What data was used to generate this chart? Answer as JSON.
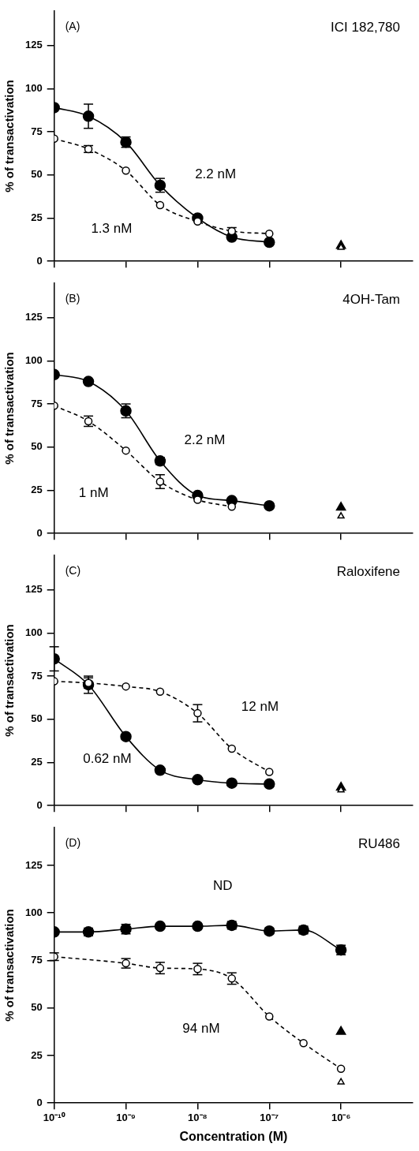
{
  "chart_data": [
    {
      "type": "line",
      "title": "ICI 182,780",
      "ylabel": "% of transactivation",
      "x": [
        1e-10,
        3e-10,
        1e-09,
        3e-09,
        1e-08,
        3e-08,
        1e-07,
        1e-06
      ],
      "xlim": [
        1e-10,
        1e-05
      ],
      "xticks": [
        {
          "value": 1e-10,
          "label": null
        },
        {
          "value": 1e-09,
          "label": null
        },
        {
          "value": 1e-08,
          "label": null
        },
        {
          "value": 1e-07,
          "label": null
        },
        {
          "value": 1e-06,
          "label": null
        }
      ],
      "ylim": [
        0,
        145
      ],
      "yticks": [
        0,
        25,
        50,
        75,
        100,
        125
      ],
      "log": "x",
      "tick_labels": "y",
      "legend": false,
      "grid": false,
      "series": [
        {
          "color": "#000000",
          "marker": "circle",
          "line_style": "solid",
          "values": [
            89,
            84,
            69,
            44,
            25,
            14,
            11,
            null
          ],
          "errors": [
            null,
            7,
            3,
            4,
            null,
            null,
            null,
            null
          ]
        },
        {
          "color": "#000000",
          "marker": "circle",
          "line_style": "dashed",
          "values": [
            71,
            65,
            52.5,
            32.5,
            23,
            17.5,
            16,
            null
          ],
          "errors": [
            null,
            2,
            null,
            null,
            null,
            2,
            null,
            null
          ]
        },
        {
          "type": "scatter",
          "color": "#000000",
          "marker": "triangle",
          "values": [
            null,
            null,
            null,
            null,
            null,
            null,
            null,
            9
          ]
        },
        {
          "type": "scatter",
          "color": "#000000",
          "marker": "triangle",
          "values": [
            null,
            null,
            null,
            null,
            null,
            null,
            null,
            8
          ]
        }
      ],
      "annotations": [
        "(A)",
        "2.2 nM",
        "1.3 nM"
      ]
    },
    {
      "type": "line",
      "title": "4OH-Tam",
      "ylabel": "% of transactivation",
      "x": [
        1e-10,
        3e-10,
        1e-09,
        3e-09,
        1e-08,
        3e-08,
        1e-07,
        1e-06
      ],
      "xlim": [
        1e-10,
        1e-05
      ],
      "xticks": [
        {
          "value": 1e-10,
          "label": null
        },
        {
          "value": 1e-09,
          "label": null
        },
        {
          "value": 1e-08,
          "label": null
        },
        {
          "value": 1e-07,
          "label": null
        },
        {
          "value": 1e-06,
          "label": null
        }
      ],
      "ylim": [
        0,
        145
      ],
      "yticks": [
        0,
        25,
        50,
        75,
        100,
        125
      ],
      "log": "x",
      "tick_labels": "y",
      "legend": false,
      "grid": false,
      "series": [
        {
          "color": "#000000",
          "marker": "circle",
          "line_style": "solid",
          "values": [
            92,
            88,
            71,
            42,
            22,
            19,
            16,
            null
          ],
          "errors": [
            null,
            null,
            4,
            2,
            null,
            null,
            null,
            null
          ]
        },
        {
          "color": "#000000",
          "marker": "circle",
          "line_style": "dashed",
          "values": [
            74,
            65,
            48,
            30,
            19.5,
            15.5,
            null,
            null
          ],
          "errors": [
            null,
            3,
            null,
            4,
            null,
            null,
            null,
            null
          ]
        },
        {
          "type": "scatter",
          "color": "#000000",
          "marker": "triangle",
          "values": [
            null,
            null,
            null,
            null,
            null,
            null,
            null,
            15
          ]
        },
        {
          "type": "scatter",
          "color": "#000000",
          "marker": "triangle",
          "values": [
            null,
            null,
            null,
            null,
            null,
            null,
            null,
            10
          ]
        }
      ],
      "annotations": [
        "(B)",
        "2.2 nM",
        "1 nM"
      ]
    },
    {
      "type": "line",
      "title": "Raloxifene",
      "ylabel": "% of transactivation",
      "x": [
        1e-10,
        3e-10,
        1e-09,
        3e-09,
        1e-08,
        3e-08,
        1e-07,
        1e-06
      ],
      "xlim": [
        1e-10,
        1e-05
      ],
      "xticks": [
        {
          "value": 1e-10,
          "label": null
        },
        {
          "value": 1e-09,
          "label": null
        },
        {
          "value": 1e-08,
          "label": null
        },
        {
          "value": 1e-07,
          "label": null
        },
        {
          "value": 1e-06,
          "label": null
        }
      ],
      "ylim": [
        0,
        145
      ],
      "yticks": [
        0,
        25,
        50,
        75,
        100,
        125
      ],
      "log": "x",
      "tick_labels": "y",
      "legend": false,
      "grid": false,
      "series": [
        {
          "color": "#000000",
          "marker": "circle",
          "line_style": "solid",
          "values": [
            85,
            70,
            40,
            20.5,
            15,
            13,
            12.5,
            null
          ],
          "errors": [
            7,
            5,
            null,
            null,
            null,
            null,
            null,
            null
          ]
        },
        {
          "color": "#000000",
          "marker": "circle",
          "line_style": "dashed",
          "values": [
            72,
            71,
            69,
            66,
            53.5,
            33,
            19.5,
            null
          ],
          "errors": [
            null,
            3,
            null,
            null,
            5,
            null,
            null,
            null
          ]
        },
        {
          "type": "scatter",
          "color": "#000000",
          "marker": "triangle",
          "values": [
            null,
            null,
            null,
            null,
            null,
            null,
            null,
            10.5
          ]
        },
        {
          "type": "scatter",
          "color": "#000000",
          "marker": "triangle",
          "values": [
            null,
            null,
            null,
            null,
            null,
            null,
            null,
            9
          ]
        }
      ],
      "annotations": [
        "(C)",
        "12 nM",
        "0.62 nM"
      ]
    },
    {
      "type": "line",
      "title": "RU486",
      "xlabel": "Concentration (M)",
      "ylabel": "% of transactivation",
      "x": [
        1e-10,
        3e-10,
        1e-09,
        3e-09,
        1e-08,
        3e-08,
        1e-07,
        3e-07,
        1e-06
      ],
      "xlim": [
        1e-10,
        1e-05
      ],
      "xticks": [
        {
          "value": 1e-10,
          "label": "10⁻¹⁰"
        },
        {
          "value": 1e-09,
          "label": "10⁻⁹"
        },
        {
          "value": 1e-08,
          "label": "10⁻⁸"
        },
        {
          "value": 1e-07,
          "label": "10⁻⁷"
        },
        {
          "value": 1e-06,
          "label": "10⁻⁶"
        }
      ],
      "ylim": [
        0,
        145
      ],
      "yticks": [
        0,
        25,
        50,
        75,
        100,
        125
      ],
      "log": "x",
      "legend": false,
      "grid": false,
      "series": [
        {
          "color": "#000000",
          "marker": "circle",
          "line_style": "solid",
          "values": [
            90,
            90,
            91.5,
            93,
            93,
            93.5,
            90.5,
            91,
            80.5
          ],
          "errors": [
            null,
            2,
            2.5,
            null,
            null,
            2,
            1.5,
            2,
            2.5
          ]
        },
        {
          "color": "#000000",
          "marker": "circle",
          "line_style": "dashed",
          "values": [
            77,
            null,
            73.5,
            71,
            70.5,
            65.5,
            45.5,
            31.5,
            18
          ],
          "errors": [
            2,
            null,
            2.5,
            3,
            3,
            3,
            null,
            null,
            null
          ]
        },
        {
          "type": "scatter",
          "color": "#000000",
          "marker": "triangle",
          "values": [
            null,
            null,
            null,
            null,
            null,
            null,
            null,
            null,
            37.5
          ]
        },
        {
          "type": "scatter",
          "color": "#000000",
          "marker": "triangle",
          "values": [
            null,
            null,
            null,
            null,
            null,
            null,
            null,
            null,
            11
          ]
        }
      ],
      "annotations": [
        "(D)",
        "ND",
        "94 nM"
      ]
    }
  ]
}
